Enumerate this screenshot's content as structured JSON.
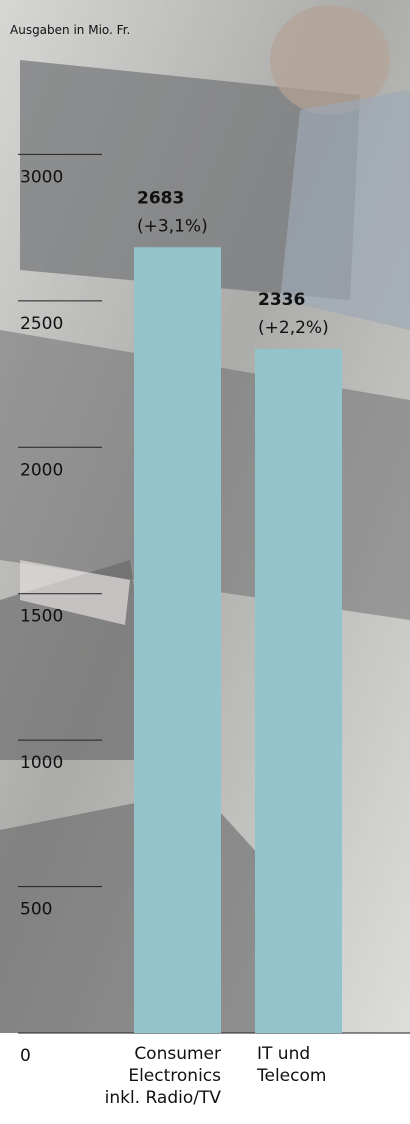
{
  "chart_data": {
    "type": "bar",
    "subtitle": "Ausgaben in Mio. Fr.",
    "categories": [
      "Consumer Electronics inkl. Radio/TV",
      "IT und Telecom"
    ],
    "values": [
      2683,
      2336
    ],
    "changes": [
      "(+3,1%)",
      "(+2,2%)"
    ],
    "color": "#93c4cc",
    "ylim": [
      0,
      3500
    ],
    "yticks": [
      0,
      500,
      1000,
      1500,
      2000,
      2500,
      3000
    ]
  }
}
